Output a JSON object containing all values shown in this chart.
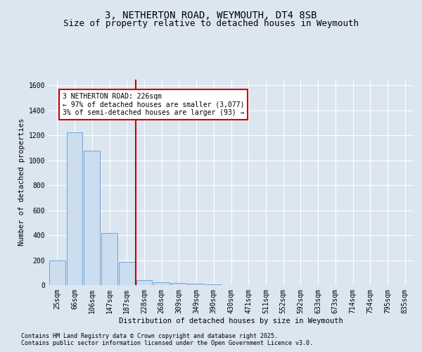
{
  "title_line1": "3, NETHERTON ROAD, WEYMOUTH, DT4 8SB",
  "title_line2": "Size of property relative to detached houses in Weymouth",
  "xlabel": "Distribution of detached houses by size in Weymouth",
  "ylabel": "Number of detached properties",
  "categories": [
    "25sqm",
    "66sqm",
    "106sqm",
    "147sqm",
    "187sqm",
    "228sqm",
    "268sqm",
    "309sqm",
    "349sqm",
    "390sqm",
    "430sqm",
    "471sqm",
    "511sqm",
    "552sqm",
    "592sqm",
    "633sqm",
    "673sqm",
    "714sqm",
    "754sqm",
    "795sqm",
    "835sqm"
  ],
  "values": [
    200,
    1225,
    1075,
    415,
    185,
    40,
    25,
    15,
    10,
    5,
    0,
    0,
    0,
    0,
    0,
    0,
    0,
    0,
    0,
    0,
    0
  ],
  "bar_color": "#ccddf0",
  "bar_edge_color": "#5b9bd5",
  "annotation_text": "3 NETHERTON ROAD: 226sqm\n← 97% of detached houses are smaller (3,077)\n3% of semi-detached houses are larger (93) →",
  "annotation_box_color": "#ffffff",
  "annotation_box_edge_color": "#cc0000",
  "vline_x": 4.5,
  "vline_color": "#cc0000",
  "ylim": [
    0,
    1650
  ],
  "yticks": [
    0,
    200,
    400,
    600,
    800,
    1000,
    1200,
    1400,
    1600
  ],
  "background_color": "#dce6f0",
  "plot_bg_color": "#dce6f0",
  "footer_line1": "Contains HM Land Registry data © Crown copyright and database right 2025.",
  "footer_line2": "Contains public sector information licensed under the Open Government Licence v3.0.",
  "title_fontsize": 10,
  "subtitle_fontsize": 9,
  "tick_fontsize": 7,
  "label_fontsize": 7.5,
  "ann_fontsize": 7,
  "footer_fontsize": 6
}
